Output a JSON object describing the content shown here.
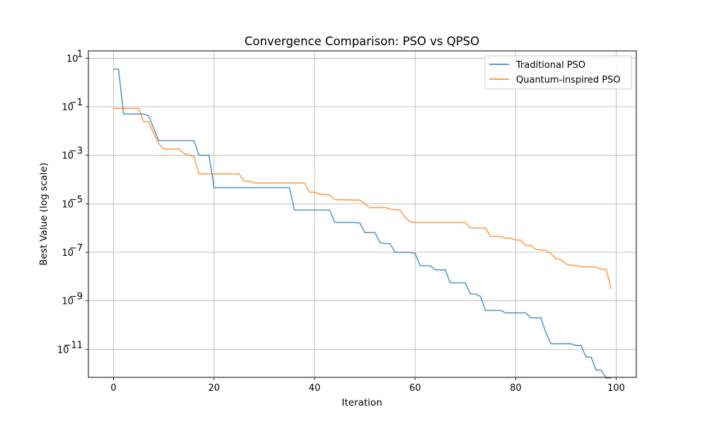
{
  "chart_data": {
    "type": "line",
    "title": "Convergence Comparison: PSO vs QPSO",
    "xlabel": "Iteration",
    "ylabel": "Best Value (log scale)",
    "yscale": "log",
    "xlim": [
      -5,
      104
    ],
    "ylim": [
      7e-13,
      20
    ],
    "grid": true,
    "legend_position": "top-right",
    "x_ticks": [
      0,
      20,
      40,
      60,
      80,
      100
    ],
    "y_ticks": [
      {
        "value": 10,
        "mantissa": "10",
        "exp": "1"
      },
      {
        "value": 0.1,
        "mantissa": "10",
        "exp": "−1"
      },
      {
        "value": 0.001,
        "mantissa": "10",
        "exp": "−3"
      },
      {
        "value": 1e-05,
        "mantissa": "10",
        "exp": "−5"
      },
      {
        "value": 1e-07,
        "mantissa": "10",
        "exp": "−7"
      },
      {
        "value": 1e-09,
        "mantissa": "10",
        "exp": "−9"
      },
      {
        "value": 1e-11,
        "mantissa": "10",
        "exp": "−11"
      }
    ],
    "series": [
      {
        "name": "Traditional PSO",
        "color": "#1f77b4",
        "points": [
          [
            0,
            3.5
          ],
          [
            1,
            3.5
          ],
          [
            2,
            0.05
          ],
          [
            6,
            0.05
          ],
          [
            7,
            0.042
          ],
          [
            9,
            0.004
          ],
          [
            16,
            0.004
          ],
          [
            17,
            0.001
          ],
          [
            19,
            0.001
          ],
          [
            20,
            4.6e-05
          ],
          [
            35,
            4.6e-05
          ],
          [
            36,
            5.5e-06
          ],
          [
            43,
            5.5e-06
          ],
          [
            44,
            1.7e-06
          ],
          [
            48,
            1.7e-06
          ],
          [
            49,
            1.6e-06
          ],
          [
            50,
            6.5e-07
          ],
          [
            52,
            6.5e-07
          ],
          [
            53,
            2.5e-07
          ],
          [
            54,
            2.3e-07
          ],
          [
            55,
            2.3e-07
          ],
          [
            56,
            1e-07
          ],
          [
            59,
            1e-07
          ],
          [
            60,
            9e-08
          ],
          [
            61,
            2.8e-08
          ],
          [
            63,
            2.8e-08
          ],
          [
            64,
            1.9e-08
          ],
          [
            66,
            1.9e-08
          ],
          [
            67,
            5.5e-09
          ],
          [
            70,
            5.5e-09
          ],
          [
            71,
            1.9e-09
          ],
          [
            72,
            1.9e-09
          ],
          [
            73,
            1.5e-09
          ],
          [
            74,
            4e-10
          ],
          [
            77,
            4e-10
          ],
          [
            78,
            3.2e-10
          ],
          [
            82,
            3.2e-10
          ],
          [
            83,
            2e-10
          ],
          [
            85,
            2e-10
          ],
          [
            86,
            5e-11
          ],
          [
            87,
            1.7e-11
          ],
          [
            91,
            1.7e-11
          ],
          [
            92,
            1.45e-11
          ],
          [
            93,
            1.45e-11
          ],
          [
            94,
            4.8e-12
          ],
          [
            95,
            4.8e-12
          ],
          [
            96,
            1.4e-12
          ],
          [
            97,
            1.4e-12
          ],
          [
            98,
            6.5e-13
          ],
          [
            99,
            6.5e-13
          ]
        ]
      },
      {
        "name": "Quantum-inspired PSO",
        "color": "#ff7f0e",
        "points": [
          [
            0,
            0.085
          ],
          [
            5,
            0.085
          ],
          [
            6,
            0.024
          ],
          [
            7,
            0.024
          ],
          [
            8,
            0.008
          ],
          [
            9,
            0.003
          ],
          [
            10,
            0.0018
          ],
          [
            13,
            0.0018
          ],
          [
            14,
            0.0012
          ],
          [
            15,
            0.001
          ],
          [
            16,
            0.0009
          ],
          [
            17,
            0.00017
          ],
          [
            25,
            0.00017
          ],
          [
            26,
            8.5e-05
          ],
          [
            27,
            8.5e-05
          ],
          [
            28,
            7.2e-05
          ],
          [
            38,
            7.2e-05
          ],
          [
            39,
            3e-05
          ],
          [
            40,
            3e-05
          ],
          [
            41,
            2.5e-05
          ],
          [
            43,
            2.3e-05
          ],
          [
            44,
            1.5e-05
          ],
          [
            49,
            1.4e-05
          ],
          [
            50,
            1e-05
          ],
          [
            51,
            7e-06
          ],
          [
            54,
            7e-06
          ],
          [
            55,
            6e-06
          ],
          [
            57,
            5.5e-06
          ],
          [
            58,
            2.8e-06
          ],
          [
            59,
            1.8e-06
          ],
          [
            60,
            1.7e-06
          ],
          [
            70,
            1.7e-06
          ],
          [
            71,
            1e-06
          ],
          [
            74,
            1e-06
          ],
          [
            75,
            4.5e-07
          ],
          [
            77,
            4.5e-07
          ],
          [
            78,
            3.8e-07
          ],
          [
            79,
            3.8e-07
          ],
          [
            80,
            3.2e-07
          ],
          [
            81,
            3.2e-07
          ],
          [
            82,
            1.9e-07
          ],
          [
            83,
            1.9e-07
          ],
          [
            84,
            1.3e-07
          ],
          [
            86,
            1.2e-07
          ],
          [
            87,
            9e-08
          ],
          [
            88,
            5.5e-08
          ],
          [
            89,
            5e-08
          ],
          [
            90,
            3.3e-08
          ],
          [
            91,
            2.9e-08
          ],
          [
            92,
            2.9e-08
          ],
          [
            93,
            2.5e-08
          ],
          [
            96,
            2.5e-08
          ],
          [
            97,
            2e-08
          ],
          [
            98,
            2e-08
          ],
          [
            99,
            3.1e-09
          ]
        ]
      }
    ]
  }
}
